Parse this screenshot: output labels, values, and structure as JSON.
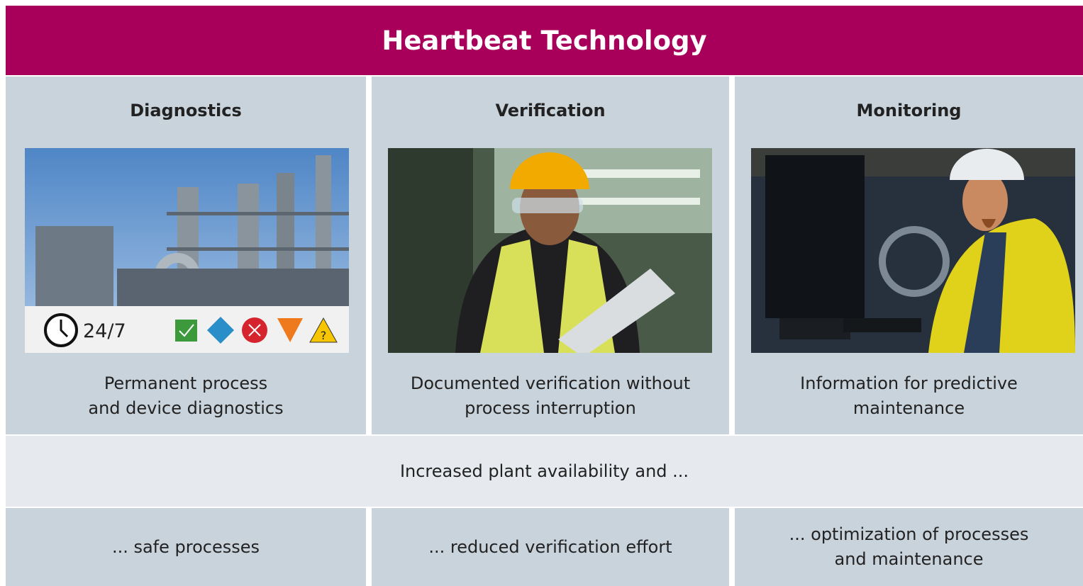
{
  "header": {
    "title": "Heartbeat Technology"
  },
  "columns": [
    {
      "title": "Diagnostics",
      "badge": "24/7",
      "description": [
        "Permanent process",
        "and device diagnostics"
      ]
    },
    {
      "title": "Verification",
      "description": [
        "Documented verification without",
        "process interruption"
      ]
    },
    {
      "title": "Monitoring",
      "description": [
        "Information for predictive",
        "maintenance"
      ]
    }
  ],
  "band": {
    "text": "Increased plant availability and ..."
  },
  "outcomes": [
    [
      "... safe processes"
    ],
    [
      "... reduced verification effort"
    ],
    [
      "... optimization of processes",
      "and maintenance"
    ]
  ]
}
